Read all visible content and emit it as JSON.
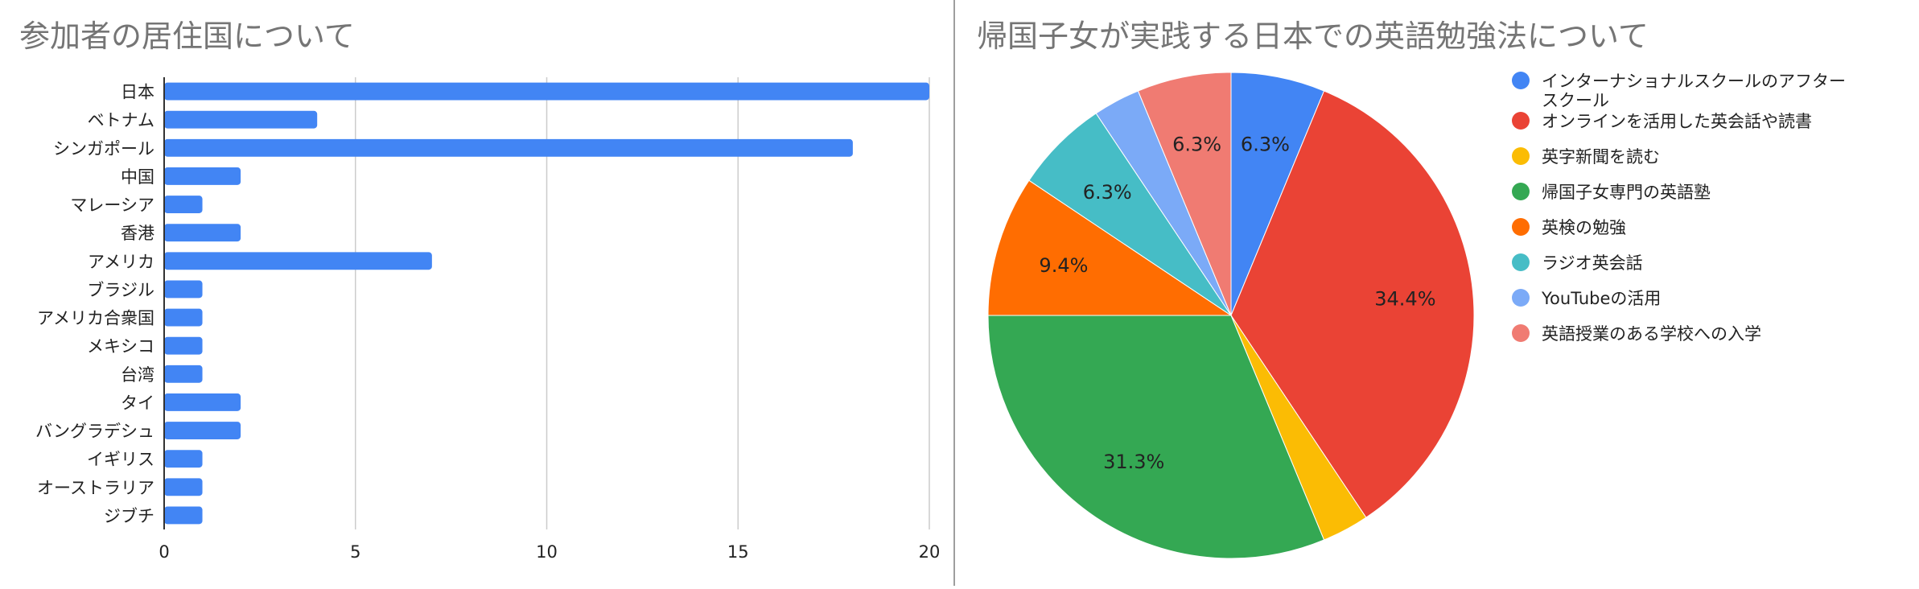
{
  "chart_data": [
    {
      "type": "bar",
      "orientation": "horizontal",
      "title": "参加者の居住国について",
      "categories": [
        "日本",
        "ベトナム",
        "シンガポール",
        "中国",
        "マレーシア",
        "香港",
        "アメリカ",
        "ブラジル",
        "アメリカ合衆国",
        "メキシコ",
        "台湾",
        "タイ",
        "バングラデシュ",
        "イギリス",
        "オーストラリア",
        "ジブチ"
      ],
      "values": [
        20,
        4,
        18,
        2,
        1,
        2,
        7,
        1,
        1,
        1,
        1,
        2,
        2,
        1,
        1,
        1
      ],
      "xlim": [
        0,
        20
      ],
      "xticks": [
        "0",
        "5",
        "10",
        "15",
        "20"
      ],
      "grid": true,
      "color": "#4285f4"
    },
    {
      "type": "pie",
      "title": "帰国子女が実践する日本での英語勉強法について",
      "legend_position": "right",
      "slices": [
        {
          "label": "インターナショナルスクールのアフタースクール",
          "legend_lines": [
            "インターナショナルスクールのアフター",
            "スクール"
          ],
          "value": 6.25,
          "display": "6.3%",
          "color": "#4285f4"
        },
        {
          "label": "オンラインを活用した英会話や読書",
          "legend_lines": [
            "オンラインを活用した英会話や読書"
          ],
          "value": 34.375,
          "display": "34.4%",
          "color": "#ea4335"
        },
        {
          "label": "英字新聞を読む",
          "legend_lines": [
            "英字新聞を読む"
          ],
          "value": 3.125,
          "display": "",
          "color": "#fbbc04"
        },
        {
          "label": "帰国子女専門の英語塾",
          "legend_lines": [
            "帰国子女専門の英語塾"
          ],
          "value": 31.25,
          "display": "31.3%",
          "color": "#34a853"
        },
        {
          "label": "英検の勉強",
          "legend_lines": [
            "英検の勉強"
          ],
          "value": 9.375,
          "display": "9.4%",
          "color": "#ff6d01"
        },
        {
          "label": "ラジオ英会話",
          "legend_lines": [
            "ラジオ英会話"
          ],
          "value": 6.25,
          "display": "6.3%",
          "color": "#46bdc6"
        },
        {
          "label": "YouTubeの活用",
          "legend_lines": [
            "YouTubeの活用"
          ],
          "value": 3.125,
          "display": "",
          "color": "#7baaf7"
        },
        {
          "label": "英語授業のある学校への入学",
          "legend_lines": [
            "英語授業のある学校への入学"
          ],
          "value": 6.25,
          "display": "6.3%",
          "color": "#f07b72"
        }
      ]
    }
  ]
}
